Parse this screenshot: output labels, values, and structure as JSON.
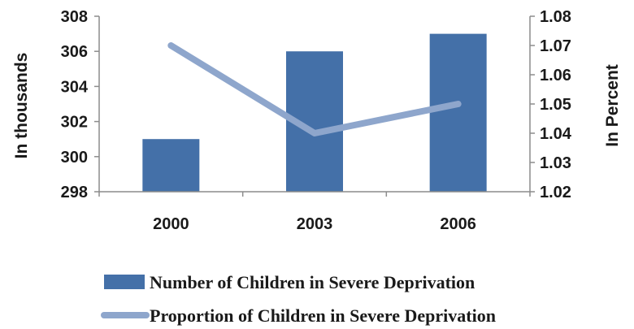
{
  "chart_data": {
    "type": "bar",
    "categories": [
      "2000",
      "2003",
      "2006"
    ],
    "series": [
      {
        "name": "Number of Children in Severe Deprivation",
        "type": "bar",
        "axis": "left",
        "values": [
          301,
          306,
          307
        ],
        "color": "#4470a8"
      },
      {
        "name": "Proportion of Children in Severe Deprivation",
        "type": "line",
        "axis": "right",
        "values": [
          1.07,
          1.04,
          1.05
        ],
        "color": "#8ea6cc"
      }
    ],
    "y_left": {
      "label": "In thousands",
      "range": [
        298,
        308
      ],
      "ticks": [
        "298",
        "300",
        "302",
        "304",
        "306",
        "308"
      ]
    },
    "y_right": {
      "label": "In Percent",
      "range": [
        1.02,
        1.08
      ],
      "ticks": [
        "1.02",
        "1.03",
        "1.04",
        "1.05",
        "1.06",
        "1.07",
        "1.08"
      ]
    },
    "grid": false,
    "legend_position": "bottom"
  }
}
